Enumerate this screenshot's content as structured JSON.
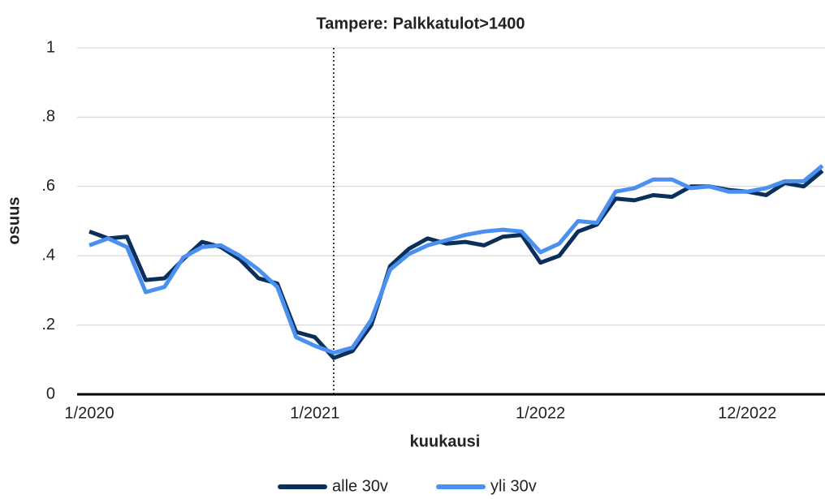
{
  "chart_data": {
    "type": "line",
    "title": "Tampere: Palkkatulot>1400",
    "x_label": "kuukausi",
    "y_label": "osuus",
    "categories": [
      "1/2020",
      null,
      null,
      null,
      null,
      null,
      null,
      null,
      null,
      null,
      null,
      null,
      "1/2021",
      null,
      null,
      null,
      null,
      null,
      null,
      null,
      null,
      null,
      null,
      null,
      "1/2022",
      null,
      null,
      null,
      null,
      null,
      null,
      null,
      null,
      null,
      null,
      "12/2022",
      null,
      null,
      null,
      null
    ],
    "series": [
      {
        "name": "alle 30v",
        "color": "#0b2f5b",
        "values": [
          0.47,
          0.45,
          0.455,
          0.33,
          0.335,
          0.39,
          0.44,
          0.425,
          0.39,
          0.335,
          0.32,
          0.18,
          0.165,
          0.105,
          0.125,
          0.2,
          0.37,
          0.42,
          0.45,
          0.435,
          0.44,
          0.43,
          0.455,
          0.46,
          0.38,
          0.4,
          0.47,
          0.49,
          0.565,
          0.56,
          0.575,
          0.57,
          0.6,
          0.6,
          0.59,
          0.585,
          0.575,
          0.61,
          0.6,
          0.645
        ]
      },
      {
        "name": "yli 30v",
        "color": "#4a90f0",
        "values": [
          0.43,
          0.45,
          0.425,
          0.295,
          0.31,
          0.395,
          0.425,
          0.43,
          0.4,
          0.36,
          0.31,
          0.165,
          0.14,
          0.12,
          0.135,
          0.215,
          0.36,
          0.405,
          0.43,
          0.445,
          0.46,
          0.47,
          0.475,
          0.47,
          0.41,
          0.435,
          0.5,
          0.495,
          0.585,
          0.595,
          0.62,
          0.62,
          0.595,
          0.6,
          0.585,
          0.585,
          0.595,
          0.615,
          0.615,
          0.66
        ]
      }
    ],
    "vline": 13,
    "ylim": [
      0,
      1
    ],
    "yticks": [
      0,
      {
        "value": 0.2,
        "label": ".2"
      },
      {
        "value": 0.4,
        "label": ".4"
      },
      {
        "value": 0.6,
        "label": ".6"
      },
      {
        "value": 0.8,
        "label": ".8"
      },
      1
    ],
    "grid": true,
    "legend": "bottom"
  }
}
